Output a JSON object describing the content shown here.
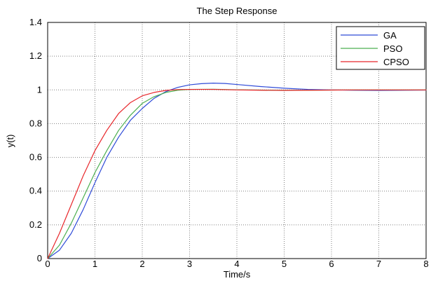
{
  "chart_data": {
    "type": "line",
    "title": "The Step Response",
    "xlabel": "Time/s",
    "ylabel": "y(t)",
    "xlim": [
      0,
      8
    ],
    "ylim": [
      0,
      1.4
    ],
    "grid": true,
    "legend_position": "top-right",
    "x_ticks": [
      "0",
      "1",
      "2",
      "3",
      "4",
      "5",
      "6",
      "7",
      "8"
    ],
    "y_ticks": [
      "0",
      "0.2",
      "0.4",
      "0.6",
      "0.8",
      "1",
      "1.2",
      "1.4"
    ],
    "x_tick_values": [
      0,
      1,
      2,
      3,
      4,
      5,
      6,
      7,
      8
    ],
    "y_tick_values": [
      0,
      0.2,
      0.4,
      0.6,
      0.8,
      1.0,
      1.2,
      1.4
    ],
    "series": [
      {
        "name": "GA",
        "color": "#2f4bd8",
        "x": [
          0,
          0.25,
          0.5,
          0.75,
          1.0,
          1.25,
          1.5,
          1.75,
          2.0,
          2.25,
          2.5,
          2.75,
          3.0,
          3.25,
          3.5,
          3.75,
          4.0,
          4.5,
          5.0,
          5.5,
          6.0,
          6.5,
          7.0,
          7.5,
          8.0
        ],
        "y": [
          0,
          0.05,
          0.15,
          0.29,
          0.45,
          0.6,
          0.72,
          0.82,
          0.89,
          0.95,
          0.99,
          1.015,
          1.03,
          1.037,
          1.04,
          1.038,
          1.032,
          1.02,
          1.01,
          1.003,
          1.0,
          0.998,
          0.997,
          0.998,
          0.999
        ]
      },
      {
        "name": "PSO",
        "color": "#4caf50",
        "x": [
          0,
          0.25,
          0.5,
          0.75,
          1.0,
          1.25,
          1.5,
          1.75,
          2.0,
          2.25,
          2.5,
          2.75,
          3.0,
          3.5,
          4.0,
          4.5,
          5.0,
          5.5,
          6.0,
          6.5,
          7.0,
          7.5,
          8.0
        ],
        "y": [
          0,
          0.08,
          0.21,
          0.36,
          0.51,
          0.64,
          0.76,
          0.85,
          0.92,
          0.96,
          0.985,
          0.998,
          1.003,
          1.004,
          1.001,
          0.999,
          0.998,
          0.998,
          0.999,
          1.0,
          1.0,
          1.0,
          1.0
        ]
      },
      {
        "name": "CPSO",
        "color": "#e8262a",
        "x": [
          0,
          0.25,
          0.5,
          0.75,
          1.0,
          1.25,
          1.5,
          1.75,
          2.0,
          2.25,
          2.5,
          2.75,
          3.0,
          3.5,
          4.0,
          4.5,
          5.0,
          5.5,
          6.0,
          6.5,
          7.0,
          7.5,
          8.0
        ],
        "y": [
          0,
          0.15,
          0.32,
          0.49,
          0.64,
          0.76,
          0.86,
          0.925,
          0.965,
          0.985,
          0.997,
          1.002,
          1.003,
          1.003,
          1.0,
          0.998,
          0.997,
          0.998,
          0.999,
          1.0,
          1.0,
          1.0,
          1.0
        ]
      }
    ]
  }
}
